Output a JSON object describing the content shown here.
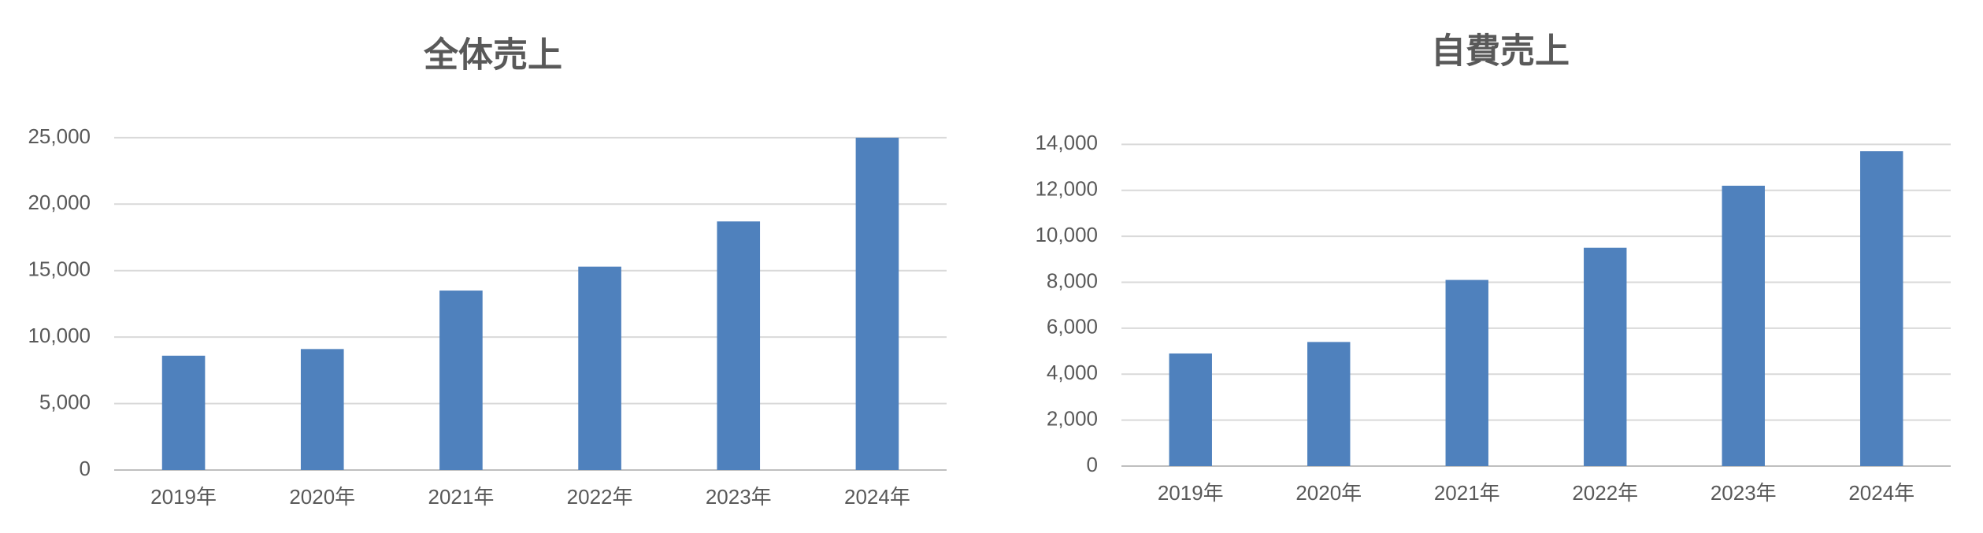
{
  "chart_data": [
    {
      "type": "bar",
      "title": "全体売上",
      "categories": [
        "2019年",
        "2020年",
        "2021年",
        "2022年",
        "2023年",
        "2024年"
      ],
      "values": [
        8600,
        9100,
        13500,
        15300,
        18700,
        25000
      ],
      "color": "#4f81bd",
      "ylim": [
        0,
        26000
      ],
      "yticks": [
        0,
        {
          "value": 5000,
          "label": "5,000"
        },
        {
          "value": 10000,
          "label": "10,000"
        },
        {
          "value": 15000,
          "label": "15,000"
        },
        {
          "value": 20000,
          "label": "20,000"
        },
        {
          "value": 25000,
          "label": "25,000"
        }
      ],
      "grid": true
    },
    {
      "type": "bar",
      "title": "自費売上",
      "categories": [
        "2019年",
        "2020年",
        "2021年",
        "2022年",
        "2023年",
        "2024年"
      ],
      "values": [
        4900,
        5400,
        8100,
        9500,
        12200,
        13700
      ],
      "color": "#4f81bd",
      "ylim": [
        0,
        14800
      ],
      "yticks": [
        0,
        {
          "value": 2000,
          "label": "2,000"
        },
        {
          "value": 4000,
          "label": "4,000"
        },
        {
          "value": 6000,
          "label": "6,000"
        },
        {
          "value": 8000,
          "label": "8,000"
        },
        {
          "value": 10000,
          "label": "10,000"
        },
        {
          "value": 12000,
          "label": "12,000"
        },
        {
          "value": 14000,
          "label": "14,000"
        }
      ],
      "grid": true
    }
  ]
}
